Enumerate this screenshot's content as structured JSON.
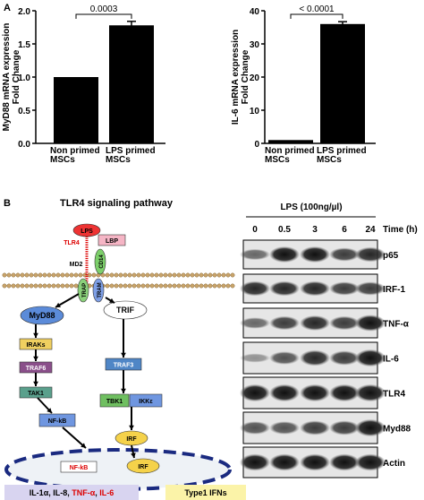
{
  "panels": [
    "A",
    "B"
  ],
  "chart_data": [
    {
      "type": "bar",
      "y_label": [
        "MyD88 mRNA expression",
        "Fold Change"
      ],
      "categories": [
        "Non primed MSCs",
        "LPS primed MSCs"
      ],
      "values": [
        1.0,
        1.78
      ],
      "errors": [
        0,
        0.06
      ],
      "color": "#000000",
      "ylim": [
        0,
        2.0
      ],
      "yticks": [
        {
          "value": 0,
          "label": "0.0"
        },
        {
          "value": 0.5,
          "label": "0.5"
        },
        {
          "value": 1.0,
          "label": "1.0"
        },
        {
          "value": 1.5,
          "label": "1.5"
        },
        {
          "value": 2.0,
          "label": "2.0"
        }
      ],
      "annotation": "0.0003"
    },
    {
      "type": "bar",
      "y_label": [
        "IL-6 mRNA expression",
        "Fold Change"
      ],
      "categories": [
        "Non primed MSCs",
        "LPS primed MSCs"
      ],
      "values": [
        1,
        36
      ],
      "errors": [
        0,
        0.7
      ],
      "color": "#000000",
      "ylim": [
        0,
        40
      ],
      "yticks": [
        0,
        10,
        20,
        30,
        40
      ],
      "annotation": "< 0.0001"
    }
  ],
  "diagram": {
    "title": "TLR4 signaling pathway",
    "nodes": [
      {
        "label": "LPS"
      },
      {
        "label": "LBP"
      },
      {
        "label": "TLR4"
      },
      {
        "label": "CD14"
      },
      {
        "label": "MD2"
      },
      {
        "label": "TRAP"
      },
      {
        "label": "TRAM"
      },
      {
        "label": "MyD88"
      },
      {
        "label": "TRIF"
      },
      {
        "label": "IRAKs"
      },
      {
        "label": "TRAF6"
      },
      {
        "label": "TAK1"
      },
      {
        "label": "NF-kB"
      },
      {
        "label": "TRAF3"
      },
      {
        "label": "TBK1"
      },
      {
        "label": "IKKε"
      },
      {
        "label": "IRF"
      },
      {
        "label": "NF-kB"
      },
      {
        "label": "IRF"
      }
    ],
    "outputs": [
      [
        "IL-1α, IL-8, ",
        "TNF-α",
        ", ",
        "IL-6"
      ],
      "Type1 IFNs"
    ]
  },
  "blot": {
    "treatment": "LPS (100ng/µl)",
    "times": [
      "0",
      "0.5",
      "3",
      "6",
      "24"
    ],
    "time_label": "Time (h)",
    "rows": [
      "p65",
      "IRF-1",
      "TNF-α",
      "IL-6",
      "TLR4",
      "Myd88",
      "Actin"
    ]
  }
}
